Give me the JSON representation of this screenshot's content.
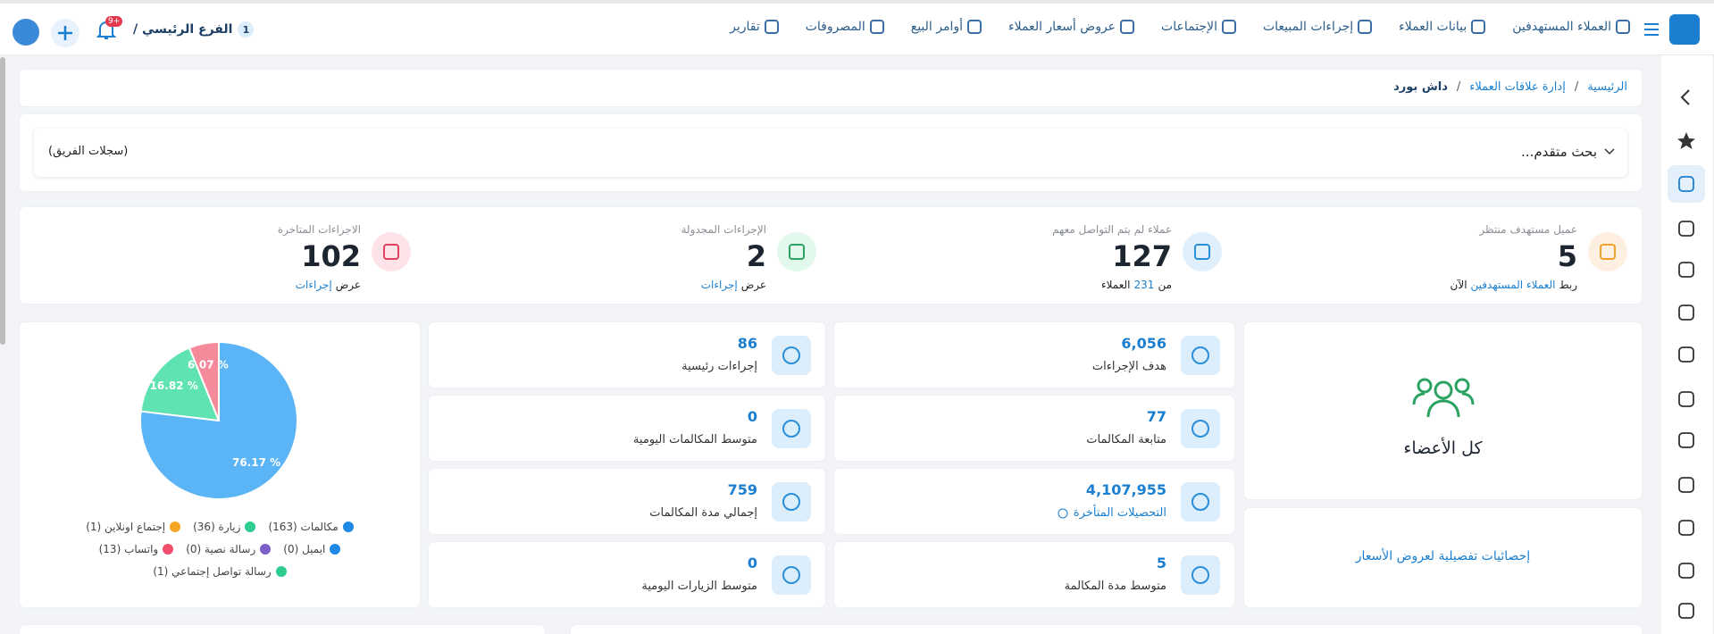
{
  "topbar": {
    "nav": [
      "العملاء المستهدفين",
      "بيانات العملاء",
      "إجراءات المبيعات",
      "الإجتماعات",
      "عروض أسعار العملاء",
      "أوامر البيع",
      "المصروفات",
      "تقارير"
    ],
    "branch_number": "1",
    "branch_name": "الفرع الرئيسي /",
    "badge": "+9"
  },
  "breadcrumb": {
    "items": [
      "الرئيسية",
      "إدارة علاقات العملاء",
      "داش بورد"
    ],
    "separator": "/"
  },
  "search": {
    "toggle": "بحث متقدم...",
    "scope": "(سجلات الفريق)"
  },
  "stats": [
    {
      "label": "عميل مستهدف منتظر",
      "value": "5",
      "footer": [
        "ربط",
        "العملاء المستهدفين",
        "الآن"
      ]
    },
    {
      "label": "عملاء لم يتم التواصل معهم",
      "value": "127",
      "footer": [
        "من",
        "231",
        "العملاء"
      ]
    },
    {
      "label": "الإجراءات المجدولة",
      "value": "2",
      "footer": [
        "عرض",
        "إجراءات"
      ]
    },
    {
      "label": "الاجراءات المتاخرة",
      "value": "102",
      "footer": [
        "عرض",
        "إجراءات"
      ]
    }
  ],
  "tiles_right": [
    {
      "value": "6,056",
      "label": "هدف الإجراءات"
    },
    {
      "value": "77",
      "label": "متابعة المكالمات"
    },
    {
      "value": "4,107,955",
      "label": "التحصيلات المتأخرة"
    },
    {
      "value": "5",
      "label": "متوسط مدة المكالمة"
    }
  ],
  "tiles_left": [
    {
      "value": "86",
      "label": "إجراءات رئيسية"
    },
    {
      "value": "0",
      "label": "متوسط المكالمات اليومية"
    },
    {
      "value": "759",
      "label": "إجمالي مدة المكالمات"
    },
    {
      "value": "0",
      "label": "متوسط الزيارات اليومية"
    }
  ],
  "members": "كل الأعضاء",
  "quotes_link": "إحصائيات تفصيلية لعروض الأسعار",
  "chart_data": {
    "type": "pie",
    "values": [
      76.17,
      16.82,
      6.07
    ],
    "value_labels": [
      "76.17 %",
      "16.82 %",
      "6.07 %"
    ],
    "colors": [
      "#5ab4f5",
      "#5fe3b0",
      "#f58a9b"
    ],
    "legend": [
      {
        "label": "مكالمات (163)",
        "color": "#1e88e5"
      },
      {
        "label": "زيارة (36)",
        "color": "#2ecc8f"
      },
      {
        "label": "إجتماع اونلاين (1)",
        "color": "#f5a623"
      },
      {
        "label": "ايميل (0)",
        "color": "#1e88e5"
      },
      {
        "label": "رسالة نصية (0)",
        "color": "#7b5fc9"
      },
      {
        "label": "واتساب (13)",
        "color": "#f0506e"
      },
      {
        "label": "رسالة تواصل إجتماعي (1)",
        "color": "#2ecc8f"
      }
    ]
  }
}
